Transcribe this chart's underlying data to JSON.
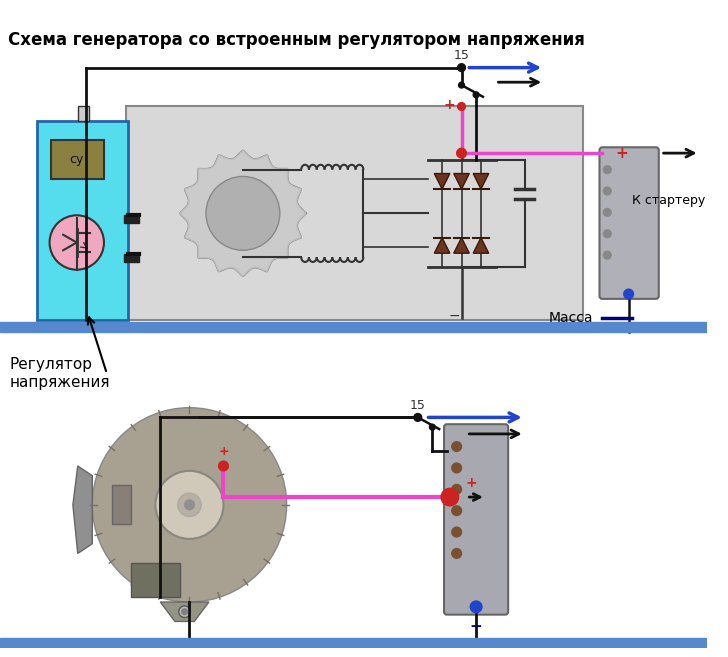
{
  "title": "Схема генератора со встроенным регулятором напряжения",
  "label_regulator": "Регулятор\nнапряжения",
  "label_starter": "К стартеру",
  "label_massa": "Масса",
  "label_15_top": "15",
  "label_15_bot": "15",
  "bg_color": "#ffffff",
  "bar_color": "#5588cc",
  "regulator_box_cyan": "#55ddee",
  "regulator_box_border": "#2266aa",
  "su_box_color": "#8b8040",
  "su_text": "су",
  "transistor_circle_color": "#f0a8c0",
  "generator_box_color": "#d8d8d8",
  "generator_box_border": "#888888",
  "wire_black": "#111111",
  "wire_blue": "#2244cc",
  "wire_pink": "#ee44cc",
  "wire_red": "#cc2222",
  "diode_color": "#6b3520",
  "battery_box_color": "#aaaaaa",
  "battery_box_border": "#666666",
  "capacitor_color": "#333333",
  "dot_red": "#cc2222",
  "dot_blue": "#2244cc",
  "dot_black": "#111111",
  "massa_line_color": "#000080"
}
